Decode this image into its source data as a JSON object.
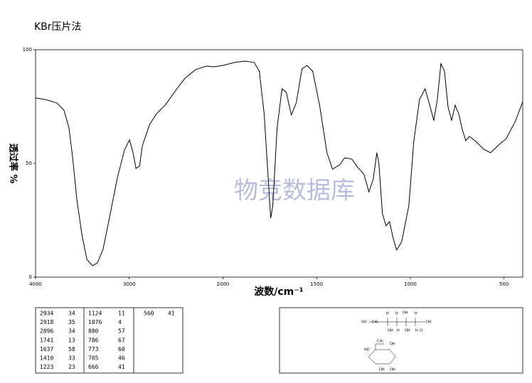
{
  "chart_data": {
    "type": "line",
    "title": "KBr压片法",
    "x_label": "波数/cm⁻¹",
    "y_label": "透过率 %",
    "watermark": "物竞数据库",
    "xlim": [
      4000,
      400
    ],
    "xticks": [
      4000,
      3000,
      2000,
      1500,
      1000,
      500
    ],
    "ylim": [
      0,
      100
    ],
    "yticks": [
      0,
      50,
      100
    ],
    "color": "#000000",
    "x": [
      4000,
      3886,
      3772,
      3696,
      3643,
      3605,
      3559,
      3506,
      3453,
      3392,
      3339,
      3278,
      3202,
      3126,
      3050,
      2997,
      2959,
      2928,
      2890,
      2860,
      2784,
      2708,
      2617,
      2518,
      2404,
      2290,
      2176,
      2100,
      2000,
      1939,
      1882,
      1833,
      1806,
      1780,
      1761,
      1745,
      1734,
      1711,
      1685,
      1662,
      1635,
      1609,
      1578,
      1552,
      1521,
      1483,
      1445,
      1415,
      1377,
      1350,
      1312,
      1282,
      1248,
      1221,
      1198,
      1179,
      1168,
      1149,
      1130,
      1111,
      1092,
      1073,
      1046,
      1008,
      982,
      951,
      921,
      894,
      875,
      856,
      837,
      818,
      799,
      780,
      761,
      742,
      723,
      704,
      685,
      647,
      609,
      571,
      533,
      488,
      438,
      400
    ],
    "values": [
      78.8,
      78,
      76.6,
      73.4,
      65.6,
      53,
      34,
      18.8,
      7.8,
      5,
      6.3,
      12.5,
      28,
      43.8,
      56,
      60.3,
      54.7,
      47.8,
      48.8,
      57.8,
      67,
      71.9,
      75.6,
      81.3,
      87.5,
      91.3,
      92.8,
      92.5,
      93.1,
      94.4,
      95,
      94.4,
      90.6,
      71.9,
      46.9,
      25.9,
      31.3,
      65.6,
      82.8,
      81.3,
      71.3,
      76.6,
      91.6,
      93.1,
      90.6,
      75,
      54.7,
      47.5,
      49.4,
      52.5,
      51.9,
      48.4,
      45.3,
      37.5,
      43.1,
      54.7,
      50,
      28,
      22.5,
      24.4,
      17.2,
      11.9,
      15.6,
      31.3,
      59.4,
      78.1,
      82.8,
      75,
      68.8,
      78.1,
      93.8,
      90.6,
      75,
      68.8,
      75.6,
      71.9,
      65,
      60,
      61.9,
      59.4,
      56.3,
      54.7,
      57.8,
      60.9,
      68.8,
      77.2
    ]
  },
  "peak_table": {
    "columns": [
      [
        [
          "2934",
          "34"
        ],
        [
          "2918",
          "35"
        ],
        [
          "2896",
          "34"
        ],
        [
          "1741",
          "13"
        ],
        [
          "1637",
          "58"
        ],
        [
          "1410",
          "33"
        ],
        [
          "1223",
          "23"
        ]
      ],
      [
        [
          "1124",
          "11"
        ],
        [
          "1076",
          "4"
        ],
        [
          "880",
          "57"
        ],
        [
          "786",
          "67"
        ],
        [
          "773",
          "60"
        ],
        [
          "705",
          "46"
        ],
        [
          "666",
          "41"
        ]
      ],
      [
        [
          "560",
          "41"
        ]
      ]
    ]
  },
  "structure": {
    "labels": [
      "HO",
      "CH₂",
      "H",
      "OH",
      "H",
      "H",
      "OH",
      "OH",
      "H",
      "OH",
      "H",
      "O",
      "CH₂",
      "OH",
      "HO",
      "OH",
      "OH"
    ]
  }
}
